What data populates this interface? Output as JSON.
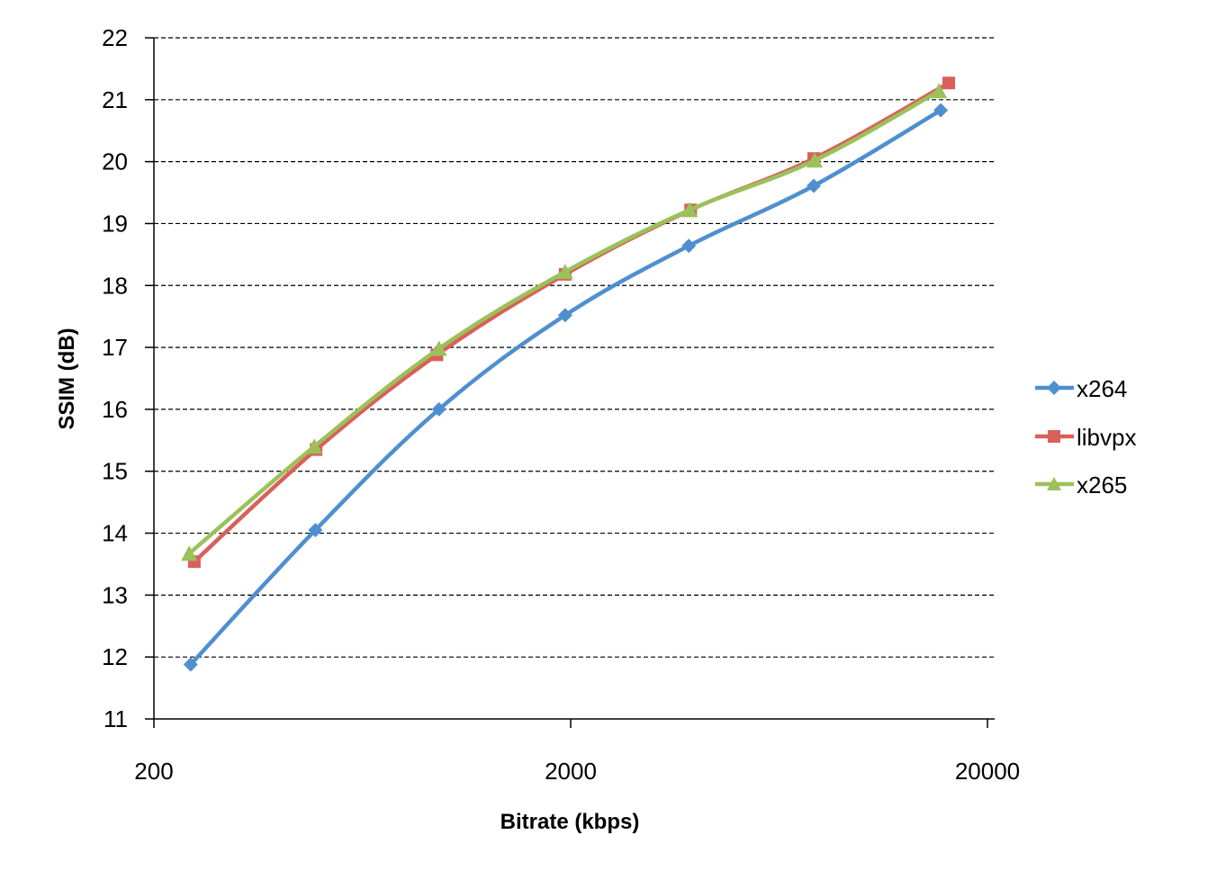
{
  "chart_data": {
    "type": "line",
    "title": "",
    "xlabel": "Bitrate (kbps)",
    "ylabel": "SSIM (dB)",
    "xscale": "log",
    "xlim": [
      200,
      20000
    ],
    "ylim": [
      11,
      22
    ],
    "x_ticks": [
      "200",
      "2000",
      "20000"
    ],
    "y_ticks": [
      "11",
      "12",
      "13",
      "14",
      "15",
      "16",
      "17",
      "18",
      "19",
      "20",
      "21",
      "22"
    ],
    "grid": {
      "y": true,
      "x": false,
      "style": "dashed"
    },
    "legend_position": "right",
    "series": [
      {
        "name": "x264",
        "color": "#4f8fd0",
        "marker": "diamond",
        "x": [
          245,
          488,
          966,
          1940,
          3840,
          7660,
          15450
        ],
        "values": [
          11.88,
          14.05,
          16.0,
          17.52,
          18.64,
          19.61,
          20.83
        ]
      },
      {
        "name": "libvpx",
        "color": "#d9605a",
        "marker": "square",
        "x": [
          250,
          490,
          955,
          1940,
          3880,
          7660,
          16150
        ],
        "values": [
          13.54,
          15.35,
          16.88,
          18.18,
          19.22,
          20.05,
          21.27
        ]
      },
      {
        "name": "x265",
        "color": "#9bc15a",
        "marker": "triangle",
        "x": [
          243,
          485,
          966,
          1940,
          3860,
          7700,
          15300
        ],
        "values": [
          13.67,
          15.4,
          16.98,
          18.22,
          19.22,
          20.02,
          21.14
        ]
      }
    ]
  }
}
